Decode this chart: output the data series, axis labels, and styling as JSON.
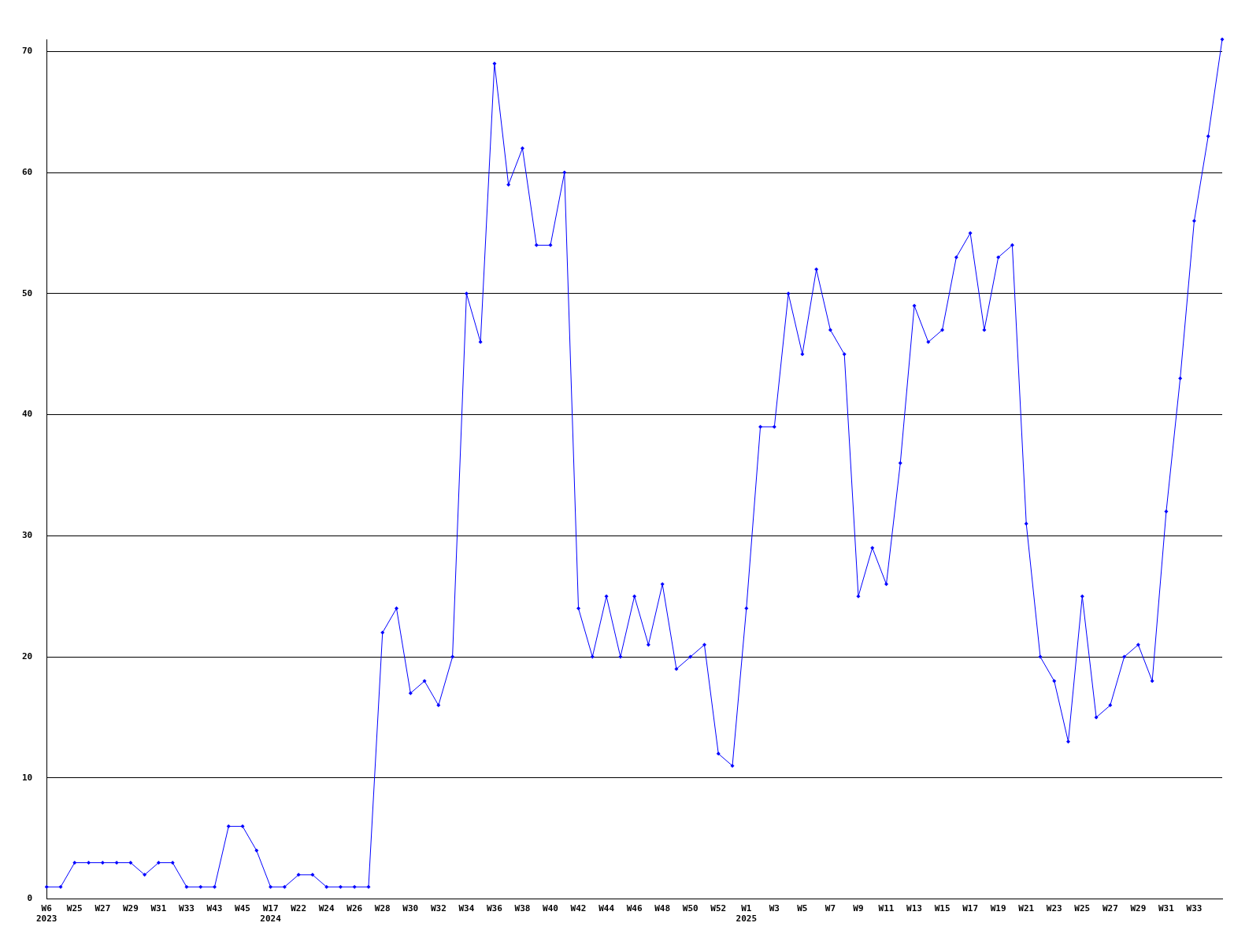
{
  "chart_data": {
    "type": "line",
    "categories": [
      "W6\n2023",
      null,
      "W25",
      null,
      "W27",
      null,
      "W29",
      null,
      "W31",
      null,
      "W33",
      null,
      "W43",
      null,
      "W45",
      null,
      "W17\n2024",
      null,
      "W22",
      null,
      "W24",
      null,
      "W26",
      null,
      "W28",
      null,
      "W30",
      null,
      "W32",
      null,
      "W34",
      null,
      "W36",
      null,
      "W38",
      null,
      "W40",
      null,
      "W42",
      null,
      "W44",
      null,
      "W46",
      null,
      "W48",
      null,
      "W50",
      null,
      "W52",
      null,
      "W1\n2025",
      null,
      "W3",
      null,
      "W5",
      null,
      "W7",
      null,
      "W9",
      null,
      "W11",
      null,
      "W13",
      null,
      "W15",
      null,
      "W17",
      null,
      "W19",
      null,
      "W21",
      null,
      "W23",
      null,
      "W25",
      null,
      "W27",
      null,
      "W29",
      null,
      "W31",
      null,
      "W33",
      null,
      null
    ],
    "series": [
      {
        "color": "#0000ff",
        "values": [
          1,
          1,
          3,
          3,
          3,
          3,
          3,
          2,
          3,
          3,
          1,
          1,
          1,
          6,
          6,
          4,
          1,
          1,
          2,
          2,
          1,
          1,
          1,
          1,
          22,
          24,
          17,
          18,
          16,
          20,
          50,
          46,
          69,
          59,
          62,
          54,
          54,
          60,
          24,
          20,
          25,
          20,
          25,
          21,
          26,
          19,
          20,
          21,
          12,
          11,
          24,
          39,
          39,
          50,
          45,
          52,
          47,
          45,
          25,
          29,
          26,
          36,
          49,
          46,
          47,
          53,
          55,
          47,
          53,
          54,
          31,
          20,
          18,
          13,
          25,
          15,
          16,
          20,
          21,
          18,
          32,
          43,
          56,
          63,
          71
        ]
      }
    ],
    "ylim": [
      0,
      71
    ],
    "yticks": [
      0,
      10,
      20,
      30,
      40,
      50,
      60,
      70
    ],
    "grid": "y",
    "marker": "diamond",
    "line_style": "solid",
    "legend": false
  }
}
